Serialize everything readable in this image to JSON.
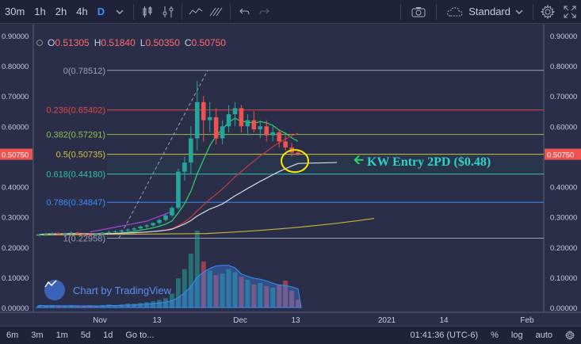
{
  "toolbar": {
    "intervals": [
      "30m",
      "1h",
      "2h",
      "4h",
      "D"
    ],
    "active_interval": "D",
    "chart_style": "Standard"
  },
  "ohlc": {
    "o_label": "O",
    "o": "0.51305",
    "h_label": "H",
    "h": "0.51840",
    "l_label": "L",
    "l": "0.50350",
    "c_label": "C",
    "c": "0.50750"
  },
  "watermark": "Chart by TradingView",
  "annotation": "KW Entry 2PD ($0.48)",
  "colors": {
    "background": "#2a2e48",
    "up": "#26a69a",
    "down": "#ef5350",
    "annotation": "#2fd1c8",
    "circle": "#ffe600"
  },
  "bottom": {
    "ranges": [
      "6m",
      "3m",
      "1m",
      "5d",
      "1d"
    ],
    "goto": "Go to...",
    "time": "01:41:36 (UTC-6)",
    "pct": "%",
    "log": "log",
    "auto": "auto"
  },
  "chart_data": {
    "type": "candlestick",
    "y_axis_ticks": [
      "0.90000",
      "0.80000",
      "0.70000",
      "0.60000",
      "0.50000",
      "0.40000",
      "0.30000",
      "0.20000",
      "0.10000",
      "0.00000"
    ],
    "x_axis_ticks": [
      "Nov",
      "13",
      "Dec",
      "13",
      "2021",
      "14",
      "Feb"
    ],
    "last_price": "0.50750",
    "ylim": [
      0,
      0.9
    ],
    "fibonacci": [
      {
        "label": "0(0.78512)",
        "value": 0.78512,
        "color": "#9aa0b5"
      },
      {
        "label": "0.236(0.65402)",
        "value": 0.65402,
        "color": "#e04848"
      },
      {
        "label": "0.382(0.57291)",
        "value": 0.57291,
        "color": "#8fbf50"
      },
      {
        "label": "0.5(0.50735)",
        "value": 0.50735,
        "color": "#d4c23c"
      },
      {
        "label": "0.618(0.44180)",
        "value": 0.4418,
        "color": "#2fc2a8"
      },
      {
        "label": "0.786(0.34847)",
        "value": 0.34847,
        "color": "#3d8bff"
      },
      {
        "label": "1(0.22958)",
        "value": 0.22958,
        "color": "#9aa0b5"
      }
    ],
    "candles": [
      [
        0.24,
        0.245,
        0.235,
        0.242
      ],
      [
        0.242,
        0.248,
        0.238,
        0.244
      ],
      [
        0.244,
        0.25,
        0.24,
        0.246
      ],
      [
        0.246,
        0.25,
        0.24,
        0.243
      ],
      [
        0.243,
        0.248,
        0.238,
        0.245
      ],
      [
        0.245,
        0.252,
        0.24,
        0.248
      ],
      [
        0.248,
        0.25,
        0.242,
        0.244
      ],
      [
        0.244,
        0.248,
        0.238,
        0.242
      ],
      [
        0.242,
        0.246,
        0.236,
        0.24
      ],
      [
        0.24,
        0.245,
        0.235,
        0.243
      ],
      [
        0.243,
        0.25,
        0.24,
        0.248
      ],
      [
        0.248,
        0.255,
        0.244,
        0.25
      ],
      [
        0.25,
        0.256,
        0.246,
        0.252
      ],
      [
        0.252,
        0.258,
        0.248,
        0.255
      ],
      [
        0.255,
        0.262,
        0.25,
        0.258
      ],
      [
        0.258,
        0.266,
        0.254,
        0.262
      ],
      [
        0.262,
        0.272,
        0.258,
        0.268
      ],
      [
        0.268,
        0.276,
        0.262,
        0.272
      ],
      [
        0.272,
        0.282,
        0.268,
        0.28
      ],
      [
        0.28,
        0.295,
        0.275,
        0.29
      ],
      [
        0.29,
        0.31,
        0.285,
        0.305
      ],
      [
        0.305,
        0.335,
        0.3,
        0.33
      ],
      [
        0.33,
        0.46,
        0.325,
        0.45
      ],
      [
        0.45,
        0.5,
        0.42,
        0.48
      ],
      [
        0.48,
        0.6,
        0.44,
        0.56
      ],
      [
        0.56,
        0.75,
        0.52,
        0.68
      ],
      [
        0.68,
        0.7,
        0.55,
        0.62
      ],
      [
        0.62,
        0.68,
        0.58,
        0.63
      ],
      [
        0.63,
        0.66,
        0.54,
        0.56
      ],
      [
        0.56,
        0.62,
        0.54,
        0.6
      ],
      [
        0.6,
        0.67,
        0.58,
        0.64
      ],
      [
        0.64,
        0.68,
        0.6,
        0.66
      ],
      [
        0.66,
        0.67,
        0.58,
        0.6
      ],
      [
        0.6,
        0.64,
        0.57,
        0.62
      ],
      [
        0.62,
        0.65,
        0.58,
        0.59
      ],
      [
        0.59,
        0.62,
        0.56,
        0.6
      ],
      [
        0.6,
        0.62,
        0.55,
        0.57
      ],
      [
        0.57,
        0.6,
        0.55,
        0.58
      ],
      [
        0.58,
        0.59,
        0.53,
        0.55
      ],
      [
        0.55,
        0.57,
        0.52,
        0.53
      ],
      [
        0.53,
        0.545,
        0.5,
        0.513
      ],
      [
        0.513,
        0.5184,
        0.5035,
        0.5075
      ]
    ],
    "volumes": [
      3,
      2,
      3,
      2,
      2,
      3,
      2,
      2,
      3,
      2,
      3,
      4,
      3,
      4,
      5,
      5,
      6,
      7,
      8,
      10,
      12,
      18,
      38,
      50,
      70,
      100,
      60,
      48,
      42,
      44,
      50,
      46,
      40,
      36,
      30,
      32,
      28,
      26,
      30,
      35,
      22,
      10
    ]
  }
}
